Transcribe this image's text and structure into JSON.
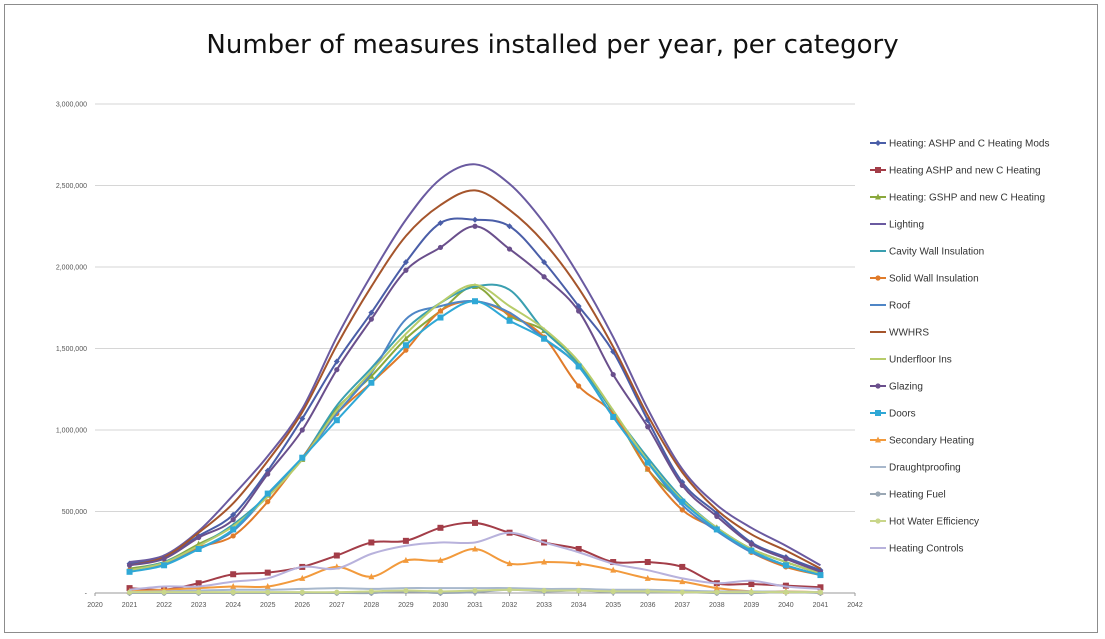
{
  "chart_data": {
    "type": "line",
    "title": "Number of measures installed per year, per category",
    "xlabel": "",
    "ylabel": "",
    "xlim": [
      2020,
      2042
    ],
    "ylim": [
      0,
      3000000
    ],
    "x_ticks": [
      "2020",
      "2021",
      "2022",
      "2023",
      "2024",
      "2025",
      "2026",
      "2027",
      "2028",
      "2029",
      "2030",
      "2031",
      "2032",
      "2033",
      "2034",
      "2035",
      "2036",
      "2037",
      "2038",
      "2039",
      "2040",
      "2041",
      "2042"
    ],
    "y_ticks": [
      0,
      500000,
      1000000,
      1500000,
      2000000,
      2500000,
      3000000
    ],
    "y_tick_labels": [
      "-",
      "500,000",
      "1,000,000",
      "1,500,000",
      "2,000,000",
      "2,500,000",
      "3,000,000"
    ],
    "grid": "horizontal",
    "legend": "right",
    "x": [
      2021,
      2022,
      2023,
      2024,
      2025,
      2026,
      2027,
      2028,
      2029,
      2030,
      2031,
      2032,
      2033,
      2034,
      2035,
      2036,
      2037,
      2038,
      2039,
      2040,
      2041
    ],
    "series": [
      {
        "name": "Heating: ASHP and C Heating Mods",
        "color": "#4a5ea8",
        "marker": "diamond",
        "values": [
          180000,
          220000,
          350000,
          480000,
          750000,
          1070000,
          1420000,
          1720000,
          2030000,
          2270000,
          2290000,
          2250000,
          2030000,
          1760000,
          1480000,
          1060000,
          680000,
          490000,
          310000,
          220000,
          140000
        ]
      },
      {
        "name": "Heating ASHP and new C Heating",
        "color": "#a33d48",
        "marker": "square",
        "values": [
          30000,
          20000,
          60000,
          115000,
          125000,
          160000,
          230000,
          310000,
          320000,
          400000,
          430000,
          370000,
          310000,
          270000,
          190000,
          190000,
          160000,
          60000,
          55000,
          45000,
          35000
        ]
      },
      {
        "name": "Heating: GSHP and new C Heating",
        "color": "#8aa83c",
        "marker": "triangle",
        "values": [
          150000,
          190000,
          300000,
          410000,
          600000,
          820000,
          1130000,
          1330000,
          1560000,
          1730000,
          1880000,
          1700000,
          1610000,
          1400000,
          1110000,
          760000,
          560000,
          400000,
          270000,
          190000,
          120000
        ]
      },
      {
        "name": "Lighting",
        "color": "#6a5aa0",
        "marker": "none",
        "values": [
          190000,
          230000,
          380000,
          600000,
          840000,
          1130000,
          1570000,
          1950000,
          2290000,
          2540000,
          2630000,
          2510000,
          2270000,
          1950000,
          1570000,
          1130000,
          760000,
          540000,
          400000,
          290000,
          170000
        ]
      },
      {
        "name": "Cavity Wall Insulation",
        "color": "#3a9fb0",
        "marker": "none",
        "values": [
          140000,
          190000,
          290000,
          420000,
          600000,
          830000,
          1150000,
          1380000,
          1620000,
          1780000,
          1880000,
          1860000,
          1610000,
          1410000,
          1110000,
          830000,
          580000,
          400000,
          270000,
          190000,
          120000
        ]
      },
      {
        "name": "Solid Wall Insulation",
        "color": "#e07b2a",
        "marker": "circle",
        "values": [
          140000,
          180000,
          280000,
          350000,
          560000,
          830000,
          1100000,
          1290000,
          1490000,
          1730000,
          1790000,
          1710000,
          1570000,
          1270000,
          1100000,
          760000,
          510000,
          390000,
          250000,
          160000,
          110000
        ]
      },
      {
        "name": "Roof",
        "color": "#4f86c6",
        "marker": "none",
        "values": [
          130000,
          180000,
          270000,
          380000,
          600000,
          820000,
          1100000,
          1350000,
          1680000,
          1760000,
          1790000,
          1720000,
          1560000,
          1390000,
          1080000,
          800000,
          540000,
          380000,
          250000,
          170000,
          110000
        ]
      },
      {
        "name": "WWHRS",
        "color": "#a5552c",
        "marker": "none",
        "values": [
          170000,
          220000,
          370000,
          550000,
          810000,
          1110000,
          1520000,
          1880000,
          2190000,
          2380000,
          2470000,
          2350000,
          2150000,
          1870000,
          1510000,
          1090000,
          740000,
          510000,
          360000,
          260000,
          150000
        ]
      },
      {
        "name": "Underfloor Ins",
        "color": "#b7cc6a",
        "marker": "none",
        "values": [
          140000,
          185000,
          290000,
          410000,
          590000,
          820000,
          1120000,
          1360000,
          1590000,
          1780000,
          1890000,
          1760000,
          1620000,
          1420000,
          1120000,
          810000,
          570000,
          400000,
          270000,
          190000,
          120000
        ]
      },
      {
        "name": "Glazing",
        "color": "#6a4f8c",
        "marker": "circle",
        "values": [
          170000,
          210000,
          340000,
          450000,
          730000,
          1000000,
          1370000,
          1680000,
          1980000,
          2120000,
          2250000,
          2110000,
          1940000,
          1730000,
          1340000,
          1020000,
          660000,
          470000,
          300000,
          210000,
          130000
        ]
      },
      {
        "name": "Doors",
        "color": "#2fa8d6",
        "marker": "square",
        "values": [
          130000,
          170000,
          270000,
          390000,
          610000,
          830000,
          1060000,
          1290000,
          1520000,
          1690000,
          1790000,
          1670000,
          1560000,
          1390000,
          1080000,
          800000,
          560000,
          390000,
          260000,
          170000,
          110000
        ]
      },
      {
        "name": "Secondary Heating",
        "color": "#f29a3c",
        "marker": "triangle",
        "values": [
          10000,
          20000,
          30000,
          40000,
          40000,
          90000,
          160000,
          100000,
          200000,
          200000,
          270000,
          180000,
          190000,
          180000,
          140000,
          90000,
          70000,
          30000,
          10000,
          10000,
          5000
        ]
      },
      {
        "name": "Draughtproofing",
        "color": "#a8b8cc",
        "marker": "none",
        "values": [
          5000,
          10000,
          15000,
          20000,
          20000,
          25000,
          30000,
          25000,
          30000,
          30000,
          30000,
          30000,
          25000,
          25000,
          20000,
          20000,
          15000,
          10000,
          10000,
          8000,
          5000
        ]
      },
      {
        "name": "Heating Fuel",
        "color": "#9aa7b4",
        "marker": "circle",
        "values": [
          0,
          0,
          0,
          0,
          0,
          0,
          0,
          0,
          10000,
          0,
          5000,
          20000,
          10000,
          15000,
          5000,
          5000,
          5000,
          0,
          0,
          5000,
          0
        ]
      },
      {
        "name": "Hot Water Efficiency",
        "color": "#c9d68a",
        "marker": "circle",
        "values": [
          5000,
          5000,
          5000,
          5000,
          5000,
          5000,
          5000,
          10000,
          15000,
          10000,
          15000,
          20000,
          15000,
          15000,
          10000,
          10000,
          5000,
          5000,
          5000,
          5000,
          5000
        ]
      },
      {
        "name": "Heating Controls",
        "color": "#b8b2dc",
        "marker": "none",
        "values": [
          20000,
          40000,
          40000,
          70000,
          90000,
          160000,
          150000,
          240000,
          290000,
          310000,
          310000,
          370000,
          310000,
          250000,
          180000,
          140000,
          90000,
          60000,
          75000,
          40000,
          25000
        ]
      }
    ]
  }
}
